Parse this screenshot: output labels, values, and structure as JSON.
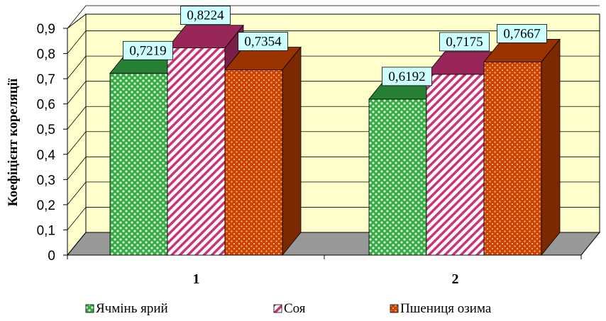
{
  "chart_data": {
    "type": "bar",
    "categories": [
      "1",
      "2"
    ],
    "series": [
      {
        "name": "Ячмінь ярий",
        "values": [
          0.7219,
          0.6192
        ],
        "color": "#33aa44"
      },
      {
        "name": "Соя",
        "values": [
          0.8224,
          0.7175
        ],
        "color": "#cc3377"
      },
      {
        "name": "Пшениця озима",
        "values": [
          0.7354,
          0.7667
        ],
        "color": "#cc4400"
      }
    ],
    "ylabel": "Коефіцієнт кореляції",
    "xlabel": "",
    "ylim": [
      0,
      0.9
    ],
    "yticks": [
      "0",
      "0,1",
      "0,2",
      "0,3",
      "0,4",
      "0,5",
      "0,6",
      "0,7",
      "0,8",
      "0,9"
    ],
    "data_labels": [
      [
        "0,7219",
        "0,6192"
      ],
      [
        "0,8224",
        "0,7175"
      ],
      [
        "0,7354",
        "0,7667"
      ]
    ],
    "grid": true,
    "legend_position": "bottom",
    "wall_color": "#ffffcc",
    "floor_color": "#999999",
    "label_background": "#ccffff"
  }
}
